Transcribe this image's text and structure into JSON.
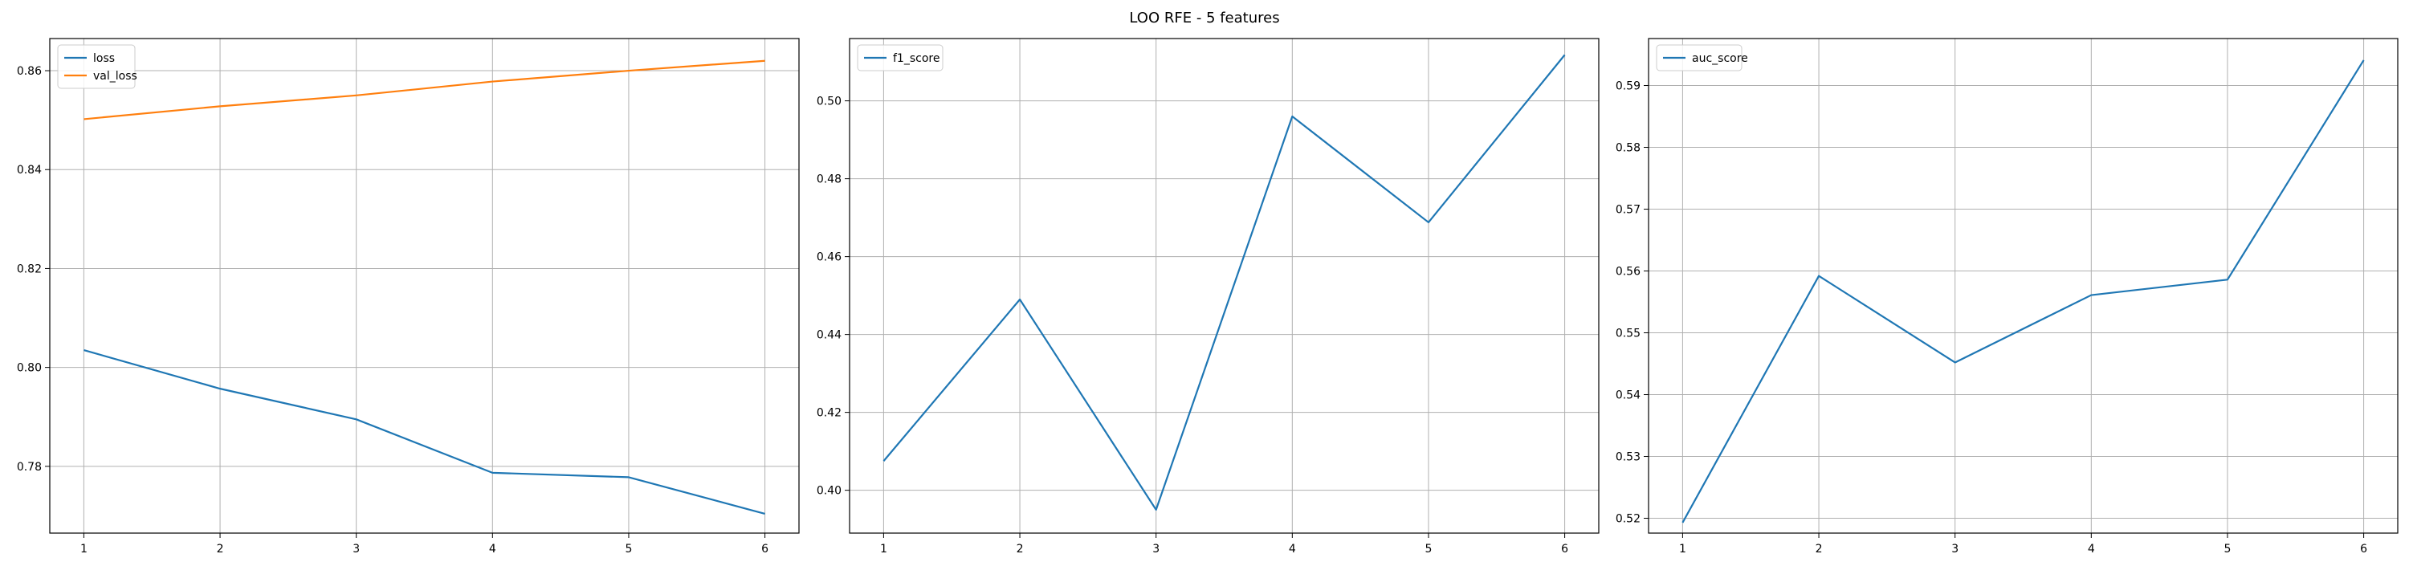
{
  "figure": {
    "title": "LOO RFE - 5 features"
  },
  "chart_data": [
    {
      "type": "line",
      "x": [
        1,
        2,
        3,
        4,
        5,
        6
      ],
      "series": [
        {
          "name": "loss",
          "color": "#1f77b4",
          "values": [
            0.8035,
            0.7957,
            0.7895,
            0.7787,
            0.7778,
            0.7704
          ]
        },
        {
          "name": "val_loss",
          "color": "#ff7f0e",
          "values": [
            0.8502,
            0.8528,
            0.855,
            0.8578,
            0.86,
            0.862
          ]
        }
      ],
      "xlim": [
        0.75,
        6.25
      ],
      "ylim": [
        0.7665,
        0.8665
      ],
      "xticks": [
        1,
        2,
        3,
        4,
        5,
        6
      ],
      "yticks": [
        "0.78",
        "0.80",
        "0.82",
        "0.84",
        "0.86"
      ],
      "grid": true,
      "legend": "upper left",
      "title": "",
      "xlabel": "",
      "ylabel": ""
    },
    {
      "type": "line",
      "x": [
        1,
        2,
        3,
        4,
        5,
        6
      ],
      "series": [
        {
          "name": "f1_score",
          "color": "#1f77b4",
          "values": [
            0.4075,
            0.449,
            0.395,
            0.496,
            0.4688,
            0.5118
          ]
        }
      ],
      "xlim": [
        0.75,
        6.25
      ],
      "ylim": [
        0.389,
        0.516
      ],
      "xticks": [
        1,
        2,
        3,
        4,
        5,
        6
      ],
      "yticks": [
        "0.40",
        "0.42",
        "0.44",
        "0.46",
        "0.48",
        "0.50"
      ],
      "grid": true,
      "legend": "upper left",
      "title": "",
      "xlabel": "",
      "ylabel": ""
    },
    {
      "type": "line",
      "x": [
        1,
        2,
        3,
        4,
        5,
        6
      ],
      "series": [
        {
          "name": "auc_score",
          "color": "#1f77b4",
          "values": [
            0.5193,
            0.5592,
            0.5452,
            0.5561,
            0.5586,
            0.5941
          ]
        }
      ],
      "xlim": [
        0.75,
        6.25
      ],
      "ylim": [
        0.5176,
        0.5976
      ],
      "xticks": [
        1,
        2,
        3,
        4,
        5,
        6
      ],
      "yticks": [
        "0.52",
        "0.53",
        "0.54",
        "0.55",
        "0.56",
        "0.57",
        "0.58",
        "0.59"
      ],
      "grid": true,
      "legend": "upper left",
      "title": "",
      "xlabel": "",
      "ylabel": ""
    }
  ]
}
